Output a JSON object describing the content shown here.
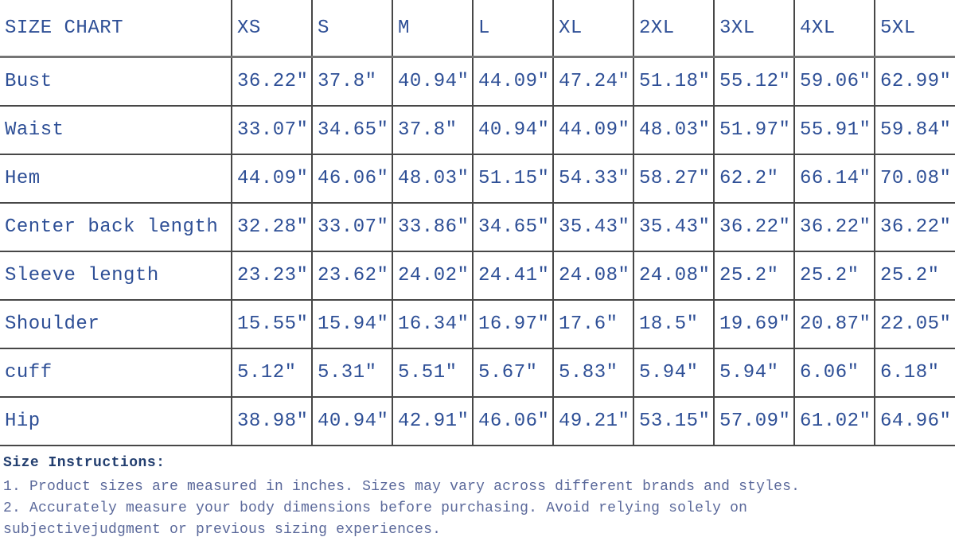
{
  "table": {
    "title": "SIZE CHART",
    "columns": [
      "XS",
      "S",
      "M",
      "L",
      "XL",
      "2XL",
      "3XL",
      "4XL",
      "5XL"
    ],
    "rows": [
      {
        "label": "Bust",
        "values": [
          "36.22″",
          "37.8″",
          "40.94″",
          "44.09″",
          "47.24″",
          "51.18″",
          "55.12″",
          "59.06″",
          "62.99″"
        ]
      },
      {
        "label": "Waist",
        "values": [
          "33.07″",
          "34.65″",
          "37.8″",
          "40.94″",
          "44.09″",
          "48.03″",
          "51.97″",
          "55.91″",
          "59.84″"
        ]
      },
      {
        "label": "Hem",
        "values": [
          "44.09″",
          "46.06″",
          "48.03″",
          "51.15″",
          "54.33″",
          "58.27″",
          "62.2″",
          "66.14″",
          "70.08″"
        ]
      },
      {
        "label": "Center back length",
        "values": [
          "32.28″",
          "33.07″",
          "33.86″",
          "34.65″",
          "35.43″",
          "35.43″",
          "36.22″",
          "36.22″",
          "36.22″"
        ]
      },
      {
        "label": "Sleeve length",
        "values": [
          "23.23″",
          "23.62″",
          "24.02″",
          "24.41″",
          "24.08″",
          "24.08″",
          "25.2″",
          "25.2″",
          "25.2″"
        ]
      },
      {
        "label": "Shoulder",
        "values": [
          "15.55″",
          "15.94″",
          "16.34″",
          "16.97″",
          "17.6″",
          "18.5″",
          "19.69″",
          "20.87″",
          "22.05″"
        ]
      },
      {
        "label": "cuff",
        "values": [
          "5.12″",
          "5.31″",
          "5.51″",
          "5.67″",
          "5.83″",
          "5.94″",
          "5.94″",
          "6.06″",
          "6.18″"
        ]
      },
      {
        "label": "Hip",
        "values": [
          "38.98″",
          "40.94″",
          "42.91″",
          "46.06″",
          "49.21″",
          "53.15″",
          "57.09″",
          "61.02″",
          "64.96″"
        ]
      }
    ]
  },
  "instructions": {
    "heading": "Size Instructions:",
    "items": [
      "1. Product sizes are measured in inches. Sizes may vary across different brands and styles.",
      "2. Accurately measure your body dimensions before purchasing. Avoid relying solely on subjectivejudgment or previous sizing experiences."
    ]
  },
  "colors": {
    "table_text": "#2e4f96",
    "instructions_heading": "#223e6f",
    "instructions_text": "#5a689a",
    "grid_border": "#474747",
    "header_rule": "#757575",
    "background": "#ffffff"
  }
}
